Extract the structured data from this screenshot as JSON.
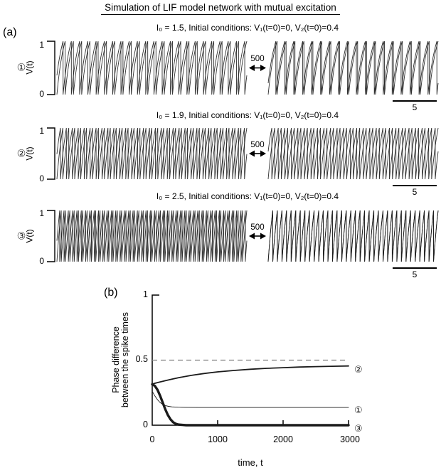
{
  "title": "Simulation of LIF model network with mutual excitation",
  "colors": {
    "trace": "#1a1a1a",
    "dashed_line": "#808080",
    "axis": "#000000"
  },
  "panel_a": {
    "label": "(a)",
    "rows": [
      {
        "marker": "①",
        "title": "I₀ = 1.5, Initial conditions: V₁(t=0)=0, V₂(t=0)=0.4",
        "ylabel": "V(t)",
        "ytick_top": "1",
        "ytick_bottom": "0",
        "gap_label": "500",
        "scalebar_label": "5"
      },
      {
        "marker": "②",
        "title": "I₀ = 1.9, Initial conditions: V₁(t=0)=0, V₂(t=0)=0.4",
        "ylabel": "V(t)",
        "ytick_top": "1",
        "ytick_bottom": "0",
        "gap_label": "500",
        "scalebar_label": "5"
      },
      {
        "marker": "③",
        "title": "I₀ = 2.5, Initial conditions: V₁(t=0)=0, V₂(t=0)=0.4",
        "ylabel": "V(t)",
        "ytick_top": "1",
        "ytick_bottom": "0",
        "gap_label": "500",
        "scalebar_label": "5"
      }
    ]
  },
  "panel_b": {
    "label": "(b)",
    "ylabel_line1": "Phase difference",
    "ylabel_line2": "between the spike times",
    "xlabel": "time, t",
    "ytick_labels": [
      "1",
      "0.5",
      "0"
    ],
    "xtick_labels": [
      "0",
      "1000",
      "2000",
      "3000"
    ],
    "curve_labels": [
      "②",
      "①",
      "③"
    ]
  },
  "chart_data": [
    {
      "id": "panel_a_voltage_traces",
      "type": "line",
      "title": "Simulation of LIF model network with mutual excitation",
      "ylabel": "V(t)",
      "ylim": [
        0,
        1
      ],
      "time_axis_break": 500,
      "scalebar_time_units": 5,
      "rows": [
        {
          "marker": "①",
          "I0": 1.5,
          "V1_t0": 0,
          "V2_t0": 0.4,
          "periods_left": 23,
          "periods_right": 19,
          "phase_offset_left": 0.25,
          "phase_offset_right": 0.14
        },
        {
          "marker": "②",
          "I0": 1.9,
          "V1_t0": 0,
          "V2_t0": 0.4,
          "periods_left": 32,
          "periods_right": 26,
          "phase_offset_left": 0.4,
          "phase_offset_right": 0.45
        },
        {
          "marker": "③",
          "I0": 2.5,
          "V1_t0": 0,
          "V2_t0": 0.4,
          "periods_left": 44,
          "periods_right": 37,
          "phase_offset_left": 0.35,
          "phase_offset_right": 0.0
        }
      ]
    },
    {
      "id": "panel_b_phase_difference",
      "type": "line",
      "xlabel": "time, t",
      "ylabel": "Phase difference between the spike times",
      "xlim": [
        0,
        3000
      ],
      "ylim": [
        0,
        1
      ],
      "xticks": [
        0,
        1000,
        2000,
        3000
      ],
      "yticks": [
        0,
        0.5,
        1
      ],
      "dashed_reference_level": 0.5,
      "legend_position": "right-of-curve-endpoints",
      "series": [
        {
          "name": "②",
          "line_width": 1.8,
          "points": [
            [
              0,
              0.317
            ],
            [
              100,
              0.33
            ],
            [
              200,
              0.342
            ],
            [
              300,
              0.354
            ],
            [
              400,
              0.365
            ],
            [
              600,
              0.383
            ],
            [
              800,
              0.398
            ],
            [
              1000,
              0.41
            ],
            [
              1250,
              0.421
            ],
            [
              1500,
              0.43
            ],
            [
              1750,
              0.437
            ],
            [
              2000,
              0.442
            ],
            [
              2250,
              0.447
            ],
            [
              2500,
              0.45
            ],
            [
              2750,
              0.453
            ],
            [
              3000,
              0.455
            ]
          ]
        },
        {
          "name": "①",
          "line_width": 0.9,
          "points": [
            [
              0,
              0.26
            ],
            [
              40,
              0.225
            ],
            [
              80,
              0.196
            ],
            [
              120,
              0.175
            ],
            [
              160,
              0.16
            ],
            [
              200,
              0.151
            ],
            [
              250,
              0.145
            ],
            [
              300,
              0.141
            ],
            [
              400,
              0.138
            ],
            [
              500,
              0.137
            ],
            [
              700,
              0.136
            ],
            [
              1000,
              0.136
            ],
            [
              2000,
              0.136
            ],
            [
              3000,
              0.136
            ]
          ]
        },
        {
          "name": "③",
          "line_width": 3.4,
          "points": [
            [
              0,
              0.315
            ],
            [
              40,
              0.302
            ],
            [
              80,
              0.272
            ],
            [
              120,
              0.228
            ],
            [
              160,
              0.175
            ],
            [
              200,
              0.122
            ],
            [
              240,
              0.077
            ],
            [
              280,
              0.044
            ],
            [
              320,
              0.023
            ],
            [
              360,
              0.011
            ],
            [
              400,
              0.005
            ],
            [
              460,
              0.002
            ],
            [
              520,
              0.0
            ],
            [
              1000,
              0.0
            ],
            [
              2000,
              0.0
            ],
            [
              3000,
              0.0
            ]
          ]
        }
      ]
    }
  ]
}
